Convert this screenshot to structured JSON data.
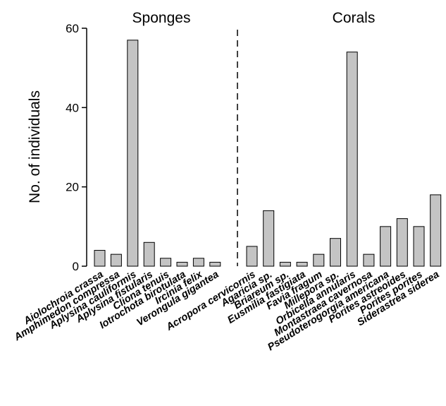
{
  "chart_data": {
    "type": "bar",
    "ylabel": "No. of individuals",
    "ylim": [
      0,
      60
    ],
    "yticks": [
      0,
      20,
      40,
      60
    ],
    "grid": false,
    "bar_color": "#c4c4c4",
    "groups": [
      {
        "label": "Sponges",
        "categories": [
          "Aiolochroia crassa",
          "Amphimedon compressa",
          "Aplysina cauliformis",
          "Aplysina fistularis",
          "Cliona tenuis",
          "Iotrochota birotulata",
          "Ircinia felix",
          "Verongula gigantea"
        ],
        "values": [
          4,
          3,
          57,
          6,
          2,
          1,
          2,
          1
        ]
      },
      {
        "label": "Corals",
        "categories": [
          "Acropora cervicornis",
          "Agaricia sp.",
          "Briareum sp.",
          "Eusmilia fastigiata",
          "Favia fragum",
          "Millepora sp.",
          "Orbicella annularis",
          "Montastraea cavernosa",
          "Pseudoterogorgia americana",
          "Porites astreoides",
          "Porites porites",
          "Siderastrea siderea"
        ],
        "values": [
          5,
          14,
          1,
          1,
          3,
          7,
          54,
          3,
          10,
          12,
          10,
          18
        ]
      }
    ]
  }
}
